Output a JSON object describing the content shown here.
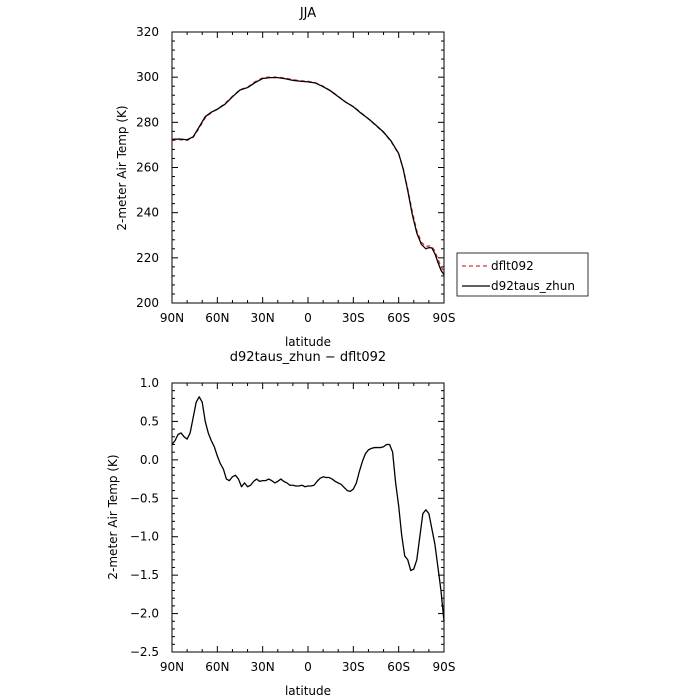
{
  "chart_data": [
    {
      "type": "line",
      "title": "JJA",
      "xlabel": "latitude",
      "ylabel": "2-meter Air Temp (K)",
      "xlim": [
        90,
        -90
      ],
      "ylim": [
        200,
        320
      ],
      "xticks": [
        {
          "value": 90,
          "label": "90N"
        },
        {
          "value": 60,
          "label": "60N"
        },
        {
          "value": 30,
          "label": "30N"
        },
        {
          "value": 0,
          "label": "0"
        },
        {
          "value": -30,
          "label": "30S"
        },
        {
          "value": -60,
          "label": "60S"
        },
        {
          "value": -90,
          "label": "90S"
        }
      ],
      "yticks": [
        200,
        220,
        240,
        260,
        280,
        300,
        320
      ],
      "legend_position": "right",
      "series": [
        {
          "name": "dflt092",
          "color": "#e03030",
          "style": "dashed",
          "x": [
            90,
            85,
            80,
            76,
            72,
            68,
            64,
            60,
            55,
            50,
            45,
            40,
            35,
            30,
            25,
            20,
            15,
            10,
            5,
            0,
            -5,
            -10,
            -15,
            -20,
            -25,
            -30,
            -35,
            -40,
            -45,
            -50,
            -55,
            -60,
            -63,
            -66,
            -69,
            -72,
            -75,
            -78,
            -80,
            -82,
            -84,
            -86,
            -88,
            -90
          ],
          "y": [
            272.3,
            272.3,
            272.0,
            273.3,
            277.5,
            282.0,
            284.3,
            285.8,
            288.3,
            291.5,
            294.5,
            295.5,
            298.0,
            299.7,
            300.1,
            300.0,
            299.6,
            298.9,
            298.4,
            298.2,
            297.5,
            296.0,
            294.0,
            291.5,
            289.0,
            287.0,
            284.3,
            281.5,
            278.5,
            275.5,
            271.5,
            266.0,
            259.5,
            250.5,
            240.5,
            232.0,
            227.0,
            225.0,
            225.3,
            225.0,
            223.0,
            219.5,
            216.0,
            214.0
          ]
        },
        {
          "name": "d92taus_zhun",
          "color": "#000000",
          "style": "solid",
          "x": [
            90,
            85,
            80,
            76,
            72,
            68,
            64,
            60,
            55,
            50,
            45,
            40,
            35,
            30,
            25,
            20,
            15,
            10,
            5,
            0,
            -5,
            -10,
            -15,
            -20,
            -25,
            -30,
            -35,
            -40,
            -45,
            -50,
            -55,
            -60,
            -63,
            -66,
            -69,
            -72,
            -75,
            -78,
            -80,
            -82,
            -84,
            -86,
            -88,
            -90
          ],
          "y": [
            272.5,
            272.6,
            272.3,
            273.6,
            278.0,
            282.5,
            284.5,
            285.8,
            288.0,
            291.3,
            294.3,
            295.4,
            297.6,
            299.4,
            299.8,
            299.8,
            299.3,
            298.6,
            298.2,
            297.9,
            297.4,
            295.8,
            293.9,
            291.4,
            288.9,
            286.9,
            284.1,
            281.6,
            278.7,
            275.7,
            271.7,
            266.2,
            259.3,
            249.8,
            239.2,
            231.0,
            226.0,
            224.0,
            224.5,
            224.4,
            221.8,
            218.0,
            214.5,
            212.5
          ]
        }
      ]
    },
    {
      "type": "line",
      "title": "d92taus_zhun − dflt092",
      "xlabel": "latitude",
      "ylabel": "2-meter Air Temp (K)",
      "xlim": [
        90,
        -90
      ],
      "ylim": [
        -2.5,
        1.0
      ],
      "xticks": [
        {
          "value": 90,
          "label": "90N"
        },
        {
          "value": 60,
          "label": "60N"
        },
        {
          "value": 30,
          "label": "30N"
        },
        {
          "value": 0,
          "label": "0"
        },
        {
          "value": -30,
          "label": "30S"
        },
        {
          "value": -60,
          "label": "60S"
        },
        {
          "value": -90,
          "label": "90S"
        }
      ],
      "yticks": [
        {
          "value": 1.0,
          "label": "1.0"
        },
        {
          "value": 0.5,
          "label": "0.5"
        },
        {
          "value": 0.0,
          "label": "0.0"
        },
        {
          "value": -0.5,
          "label": "−0.5"
        },
        {
          "value": -1.0,
          "label": "−1.0"
        },
        {
          "value": -1.5,
          "label": "−1.5"
        },
        {
          "value": -2.0,
          "label": "−2.0"
        },
        {
          "value": -2.5,
          "label": "−2.5"
        }
      ],
      "series": [
        {
          "name": "",
          "color": "#000000",
          "style": "solid",
          "x": [
            90,
            88,
            86,
            84,
            82,
            80,
            78,
            76,
            74,
            72,
            70,
            68,
            66,
            64,
            62,
            60,
            58,
            56,
            54,
            52,
            50,
            48,
            46,
            44,
            42,
            40,
            38,
            36,
            34,
            32,
            30,
            28,
            26,
            24,
            22,
            20,
            18,
            16,
            14,
            12,
            10,
            8,
            6,
            4,
            2,
            0,
            -2,
            -4,
            -6,
            -8,
            -10,
            -12,
            -14,
            -16,
            -18,
            -20,
            -22,
            -24,
            -26,
            -28,
            -30,
            -32,
            -34,
            -36,
            -38,
            -40,
            -42,
            -44,
            -46,
            -48,
            -50,
            -52,
            -54,
            -56,
            -58,
            -60,
            -62,
            -64,
            -66,
            -68,
            -70,
            -72,
            -74,
            -76,
            -78,
            -80,
            -82,
            -84,
            -86,
            -88,
            -90
          ],
          "y": [
            0.2,
            0.25,
            0.33,
            0.35,
            0.3,
            0.27,
            0.35,
            0.55,
            0.75,
            0.82,
            0.75,
            0.5,
            0.35,
            0.25,
            0.17,
            0.05,
            -0.05,
            -0.12,
            -0.25,
            -0.27,
            -0.22,
            -0.2,
            -0.25,
            -0.35,
            -0.3,
            -0.35,
            -0.33,
            -0.28,
            -0.25,
            -0.28,
            -0.27,
            -0.27,
            -0.25,
            -0.27,
            -0.3,
            -0.28,
            -0.25,
            -0.28,
            -0.3,
            -0.33,
            -0.33,
            -0.34,
            -0.34,
            -0.33,
            -0.35,
            -0.34,
            -0.34,
            -0.33,
            -0.28,
            -0.24,
            -0.22,
            -0.23,
            -0.23,
            -0.25,
            -0.28,
            -0.3,
            -0.32,
            -0.36,
            -0.4,
            -0.41,
            -0.38,
            -0.3,
            -0.15,
            -0.02,
            0.08,
            0.13,
            0.15,
            0.16,
            0.16,
            0.16,
            0.17,
            0.2,
            0.2,
            0.1,
            -0.3,
            -0.6,
            -0.98,
            -1.25,
            -1.3,
            -1.44,
            -1.42,
            -1.3,
            -1.0,
            -0.7,
            -0.65,
            -0.7,
            -0.9,
            -1.1,
            -1.4,
            -1.7,
            -2.1
          ]
        }
      ]
    }
  ]
}
